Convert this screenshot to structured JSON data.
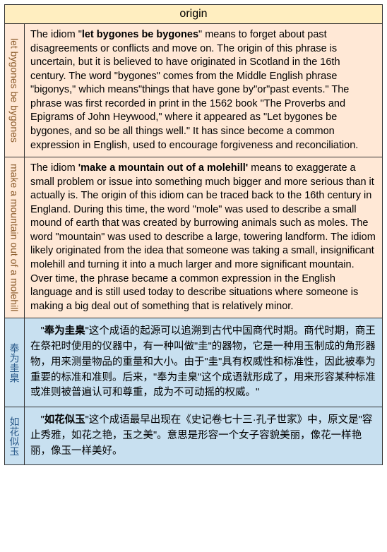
{
  "header": {
    "title": "origin"
  },
  "colors": {
    "header_bg": "#ffeec0",
    "row_a_bg": "#ffe8d6",
    "row_b_bg": "#c8e0f0",
    "label_a_color": "#8a5a2a",
    "label_b_color": "#2a5a8a",
    "border": "#333333"
  },
  "rows": [
    {
      "group": "a",
      "label": "let bygones be bygones",
      "content_html": "The idiom \"<b>let bygones be bygones</b>\" means to forget about past disagreements or conflicts and move on. The origin of this phrase is uncertain, but it is believed to have originated in Scotland in the 16th century. The word \"bygones\" comes from the Middle English phrase \"bigonys,\" which means\"things that have gone by\"or\"past events.\" The phrase was first recorded in print in the 1562 book \"The Proverbs and Epigrams of John Heywood,\" where it appeared as \"Let bygones be bygones, and so be all things well.\" It has since become a common expression in English, used to encourage forgiveness and reconciliation."
    },
    {
      "group": "a",
      "label": "make a mountain out of a molehill",
      "content_html": "The idiom <b>'make a mountain out of a molehill'</b> means to exaggerate a small problem or issue into something much bigger and more serious than it actually is. The origin of this idiom can be traced back to the 16th century in England. During this time, the word \"mole\" was used to describe a small mound of earth that was created by burrowing animals such as moles. The word \"mountain\" was used to describe a large, towering landform. The idiom likely originated from the idea that someone was taking a small, insignificant molehill and turning it into a much larger and more significant mountain. Over time, the phrase became a common expression in the English language and is still used today to describe situations where someone is making a big deal out of something that is relatively minor."
    },
    {
      "group": "b",
      "label": "奉为圭臬",
      "content_html": "　\"<b>奉为圭臬</b>\"这个成语的起源可以追溯到古代中国商代时期。商代时期，商王在祭祀时使用的仪器中，有一种叫做\"圭\"的器物，它是一种用玉制成的角形器物，用来测量物品的重量和大小。由于\"圭\"具有权威性和标准性，因此被奉为重要的标准和准则。后来，\"奉为圭臬\"这个成语就形成了，用来形容某种标准或准则被普遍认可和尊重，成为不可动摇的权威。\""
    },
    {
      "group": "b",
      "label": "如花似玉",
      "content_html": "　\"<b>如花似玉</b>\"这个成语最早出现在《史记卷七十三·孔子世家》中，原文是\"容止秀雅，如花之艳，玉之美\"。意思是形容一个女子容貌美丽，像花一样艳丽，像玉一样美好。"
    }
  ]
}
